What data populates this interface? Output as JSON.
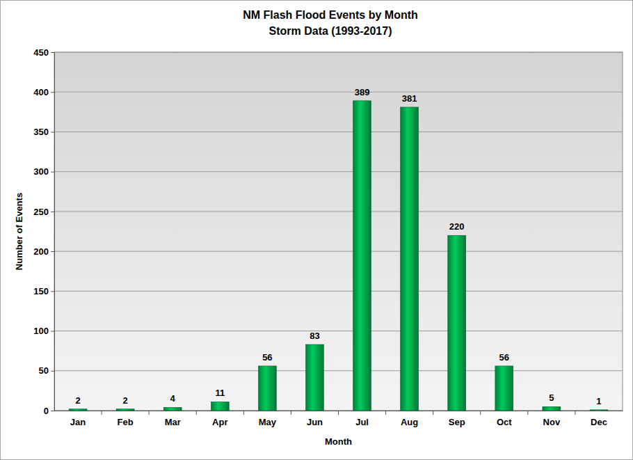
{
  "chart_data": {
    "type": "bar",
    "title": "NM Flash Flood Events by Month",
    "subtitle": "Storm Data (1993-2017)",
    "x_label": "Month",
    "y_label": "Number of Events",
    "categories": [
      "Jan",
      "Feb",
      "Mar",
      "Apr",
      "May",
      "Jun",
      "Jul",
      "Aug",
      "Sep",
      "Oct",
      "Nov",
      "Dec"
    ],
    "values": [
      2,
      2,
      4,
      11,
      56,
      83,
      389,
      381,
      220,
      56,
      5,
      1
    ],
    "color": "#00b050",
    "ylim": [
      0,
      450
    ],
    "yticks": [
      0,
      50,
      100,
      150,
      200,
      250,
      300,
      350,
      400,
      450
    ],
    "grid": true,
    "data_labels": true
  }
}
